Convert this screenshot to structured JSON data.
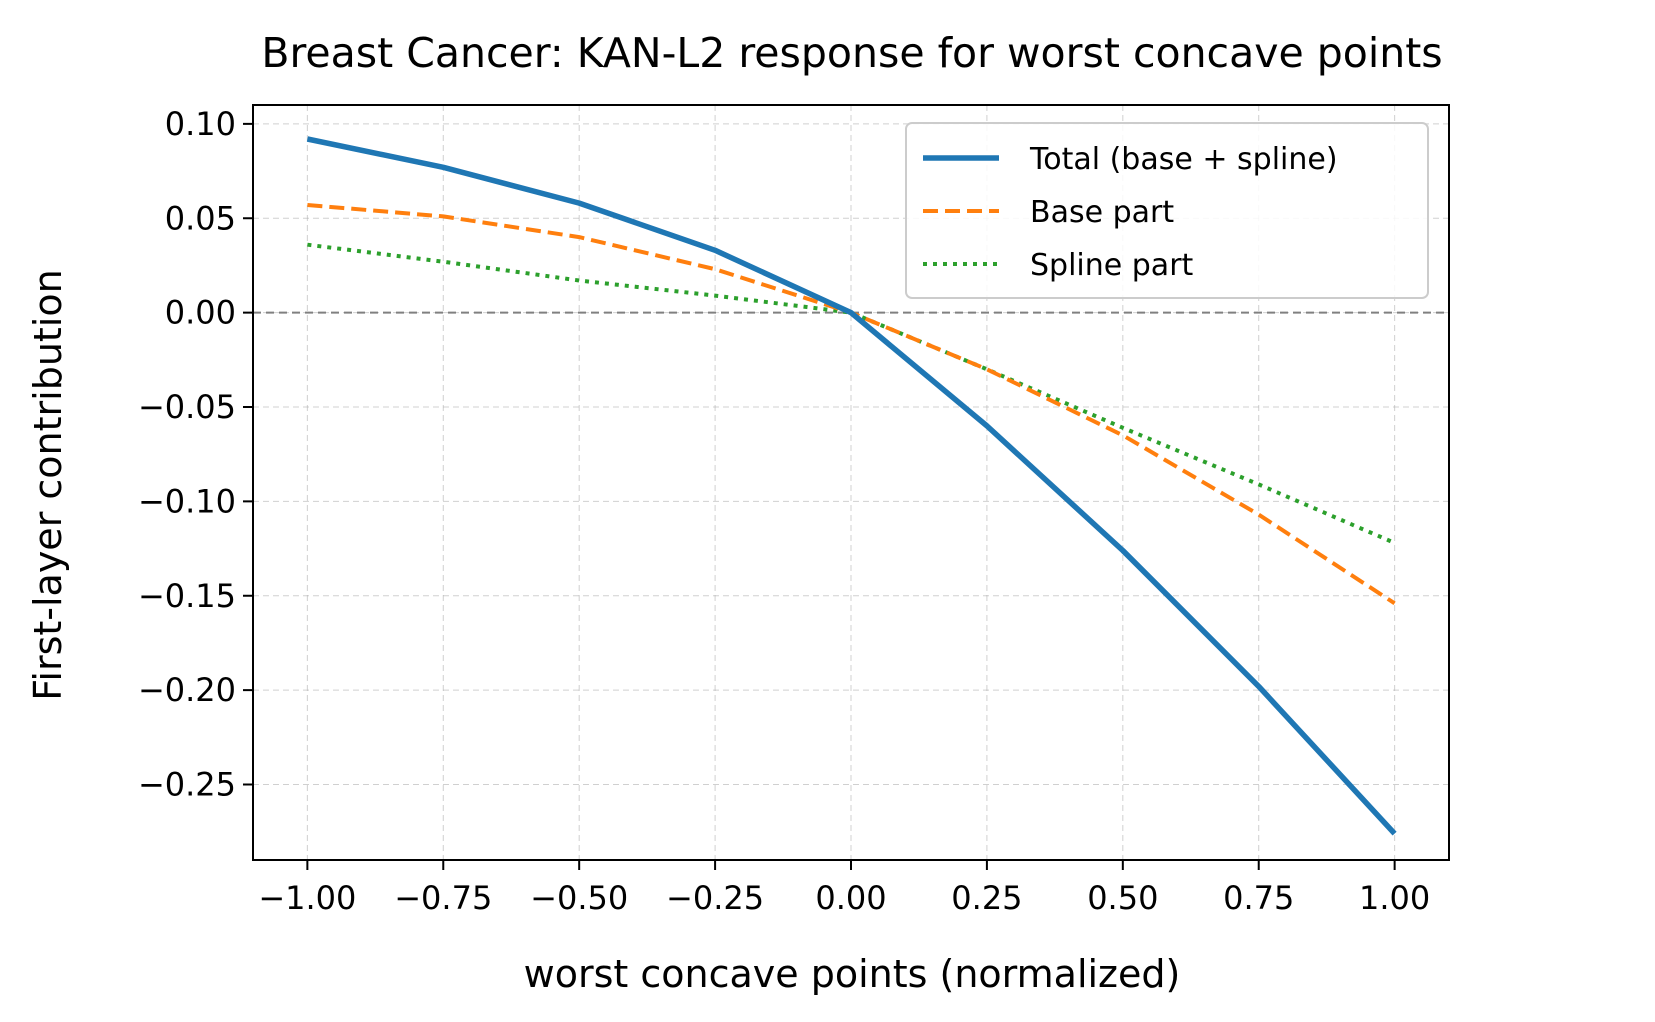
{
  "chart_data": {
    "type": "line",
    "title": "Breast Cancer: KAN-L2 response for worst concave points",
    "xlabel": "worst concave points (normalized)",
    "ylabel": "First-layer contribution",
    "xlim": [
      -1.1,
      1.1
    ],
    "ylim": [
      -0.29,
      0.11
    ],
    "grid": true,
    "legend_position": "upper right",
    "zero_line": true,
    "x_ticks": [
      -1.0,
      -0.75,
      -0.5,
      -0.25,
      0.0,
      0.25,
      0.5,
      0.75,
      1.0
    ],
    "x_tick_labels": [
      "−1.00",
      "−0.75",
      "−0.50",
      "−0.25",
      "0.00",
      "0.25",
      "0.50",
      "0.75",
      "1.00"
    ],
    "y_ticks": [
      0.1,
      0.05,
      0.0,
      -0.05,
      -0.1,
      -0.15,
      -0.2,
      -0.25
    ],
    "y_tick_labels": [
      "0.10",
      "0.05",
      "0.00",
      "−0.05",
      "−0.10",
      "−0.15",
      "−0.20",
      "−0.25"
    ],
    "x": [
      -1.0,
      -0.75,
      -0.5,
      -0.25,
      0.0,
      0.25,
      0.5,
      0.75,
      1.0
    ],
    "series": [
      {
        "name": "Total (base + spline)",
        "color": "#1f77b4",
        "style": "solid",
        "values": [
          0.092,
          0.077,
          0.058,
          0.033,
          0.0,
          -0.06,
          -0.126,
          -0.198,
          -0.276
        ]
      },
      {
        "name": "Base part",
        "color": "#ff7f0e",
        "style": "dashed",
        "values": [
          0.057,
          0.051,
          0.04,
          0.023,
          0.0,
          -0.03,
          -0.065,
          -0.107,
          -0.154
        ]
      },
      {
        "name": "Spline part",
        "color": "#2ca02c",
        "style": "dotted",
        "values": [
          0.036,
          0.027,
          0.017,
          0.009,
          0.0,
          -0.03,
          -0.061,
          -0.091,
          -0.122
        ]
      }
    ]
  }
}
